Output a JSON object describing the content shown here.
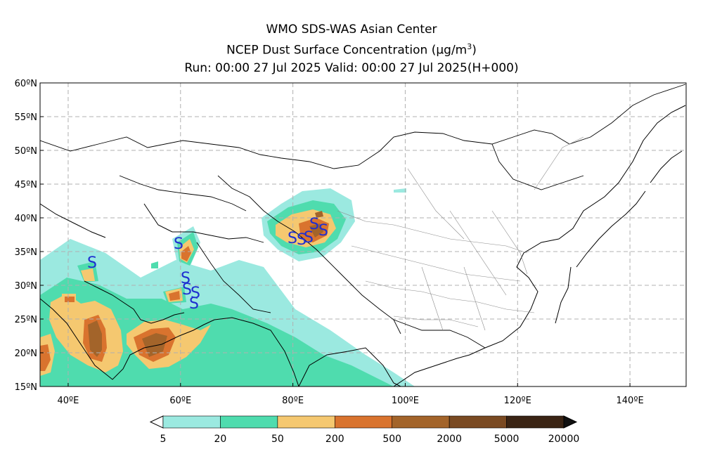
{
  "title": {
    "line1": "WMO SDS-WAS Asian Center",
    "line2_text": "NCEP Dust Surface Concentration (",
    "line2_unit": "μg/m",
    "line2_sup": "3",
    "line2_close": ")",
    "line3": "Run: 00:00 27 Jul 2025    Valid: 00:00 27 Jul 2025(H+000)"
  },
  "map": {
    "lon_range": [
      35,
      150
    ],
    "lat_range": [
      15,
      60
    ],
    "lat_ticks": [
      "15ºN",
      "20ºN",
      "25ºN",
      "30ºN",
      "35ºN",
      "40ºN",
      "45ºN",
      "50ºN",
      "55ºN",
      "60ºN"
    ],
    "lon_ticks": [
      "40ºE",
      "60ºE",
      "80ºE",
      "100ºE",
      "120ºE",
      "140ºE"
    ],
    "gridlines": true,
    "station_marker": "S",
    "station_color": "#1f2fd0"
  },
  "legend": {
    "labels": [
      "5",
      "20",
      "50",
      "200",
      "500",
      "2000",
      "5000",
      "20000"
    ],
    "colors": [
      "#9be9e0",
      "#4fdcae",
      "#f5c870",
      "#d9732e",
      "#a3642a",
      "#7a4a22",
      "#3a2414"
    ]
  }
}
